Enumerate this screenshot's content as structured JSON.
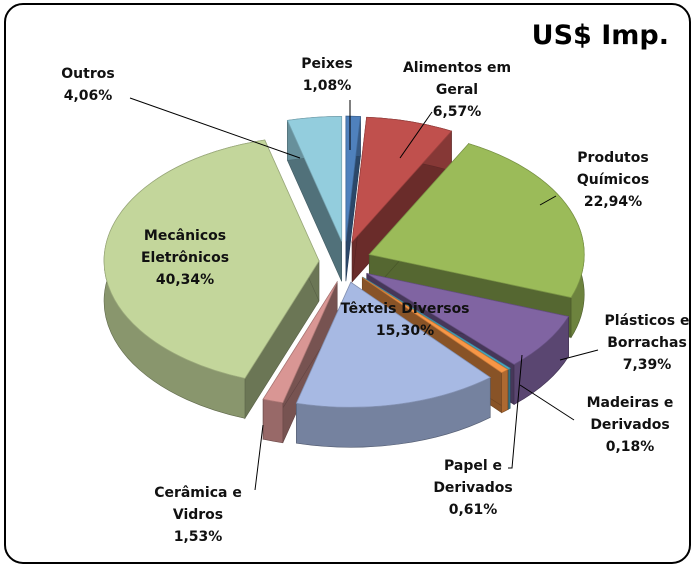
{
  "chart_data": {
    "type": "pie3d",
    "title": "US$ Imp.",
    "categories": [
      "Peixes",
      "Alimentos em Geral",
      "Produtos Químicos",
      "Plásticos e Borrachas",
      "Madeiras e Derivados",
      "Papel e Derivados",
      "Têxteis Diversos",
      "Cerâmica e Vidros",
      "Mecânicos Eletrônicos",
      "Outros"
    ],
    "values": [
      1.08,
      6.57,
      22.94,
      7.39,
      0.18,
      0.61,
      15.3,
      1.53,
      40.34,
      4.06
    ],
    "value_labels": [
      "1,08%",
      "6,57%",
      "22,94%",
      "7,39%",
      "0,18%",
      "0,61%",
      "15,30%",
      "1,53%",
      "40,34%",
      "4,06%"
    ],
    "colors": [
      "#4f81bd",
      "#c0504d",
      "#9bbb59",
      "#8064a2",
      "#4bacc6",
      "#f79646",
      "#a7b9e3",
      "#d99694",
      "#c3d69b",
      "#93cddd"
    ]
  }
}
